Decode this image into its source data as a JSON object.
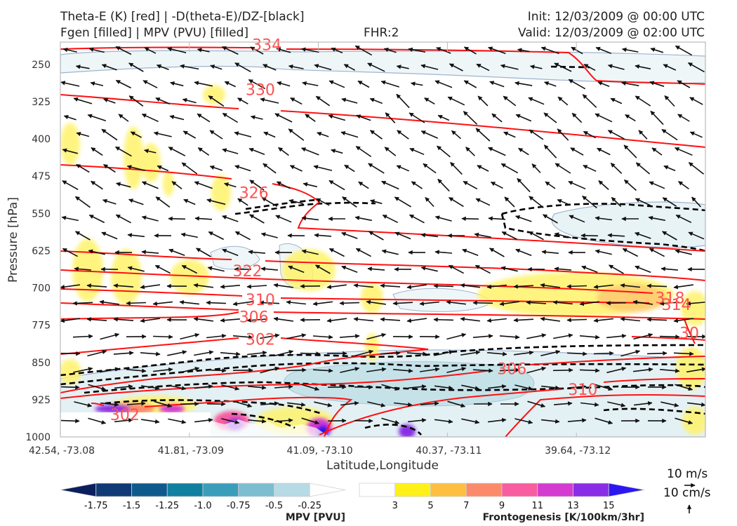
{
  "header": {
    "title_line1": "Theta-E (K) [red] | -D(theta-E)/DZ-[black]",
    "title_line2": "Fgen [filled] | MPV (PVU) [filled]",
    "fhr": "FHR:2",
    "init": "Init: 12/03/2009 @ 00:00 UTC",
    "valid": "Valid: 12/03/2009 @ 02:00 UTC"
  },
  "chart_data": {
    "type": "cross-section",
    "xlabel": "Latitude,Longitude",
    "ylabel": "Pressure [hPa]",
    "x_ticks": [
      "42.54, -73.08",
      "41.81, -73.09",
      "41.09, -73.10",
      "40.37, -73.11",
      "39.64, -73.12"
    ],
    "y_ticks": [
      250,
      325,
      400,
      475,
      550,
      625,
      700,
      775,
      850,
      925,
      1000
    ],
    "ylim": [
      1000,
      205
    ],
    "theta_e_contour_labels": [
      {
        "value": "334",
        "x_frac": 0.32,
        "p": 210
      },
      {
        "value": "330",
        "x_frac": 0.31,
        "p": 300
      },
      {
        "value": "326",
        "x_frac": 0.3,
        "p": 508
      },
      {
        "value": "322",
        "x_frac": 0.29,
        "p": 665
      },
      {
        "value": "318",
        "x_frac": 0.945,
        "p": 720
      },
      {
        "value": "314",
        "x_frac": 0.955,
        "p": 733
      },
      {
        "value": "310",
        "x_frac": 0.31,
        "p": 723
      },
      {
        "value": "306",
        "x_frac": 0.3,
        "p": 758
      },
      {
        "value": "302",
        "x_frac": 0.31,
        "p": 803
      },
      {
        "value": "306",
        "x_frac": 0.7,
        "p": 862
      },
      {
        "value": "310",
        "x_frac": 0.81,
        "p": 904
      },
      {
        "value": "302",
        "x_frac": 0.1,
        "p": 955
      },
      {
        "value": "30",
        "x_frac": 0.975,
        "p": 790
      }
    ],
    "mpv_colorbar": {
      "label": "MPV [PVU]",
      "ticks": [
        "-1.75",
        "-1.5",
        "-1.25",
        "-1.0",
        "-0.75",
        "-0.5",
        "-0.25"
      ],
      "colors": [
        "#0b1f5c",
        "#0f3a75",
        "#0f5a8c",
        "#117fa0",
        "#3a9ebb",
        "#7dbdd0",
        "#b6dbe4",
        "#ffffff"
      ]
    },
    "fgen_colorbar": {
      "label": "Frontogenesis [K/100km/3hr]",
      "ticks": [
        "3",
        "5",
        "7",
        "9",
        "11",
        "13",
        "15"
      ],
      "colors": [
        "#ffffff",
        "#fff01a",
        "#fdbf3f",
        "#fb8a6b",
        "#f75d9f",
        "#d43bd0",
        "#8a2de6",
        "#2b18f0"
      ]
    },
    "wind_reference": {
      "horizontal": "10 m/s",
      "vertical": "10 cm/s"
    }
  }
}
